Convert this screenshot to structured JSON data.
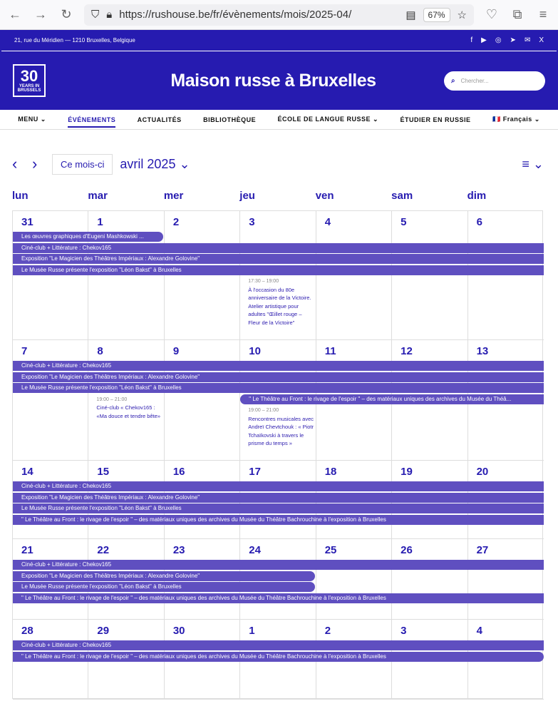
{
  "browser": {
    "url": "https://rushouse.be/fr/évènements/mois/2025-04/",
    "zoom": "67%"
  },
  "topbar": {
    "address": "21, rue du Méridien — 1210 Bruxelles, Belgique",
    "social": [
      "facebook-icon",
      "youtube-icon",
      "instagram-icon",
      "telegram-icon",
      "mail-icon",
      "x-icon"
    ]
  },
  "header": {
    "logo_text": "30",
    "logo_sub": "YEARS IN BRUSSELS",
    "title": "Maison russe à Bruxelles",
    "search_placeholder": "Chercher..."
  },
  "nav": [
    {
      "label": "MENU ⌄"
    },
    {
      "label": "ÉVÉNEMENTS",
      "active": true
    },
    {
      "label": "ACTUALITÉS"
    },
    {
      "label": "BIBLIOTHÈQUE"
    },
    {
      "label": "ÉCOLE DE LANGUE RUSSE ⌄"
    },
    {
      "label": "ÉTUDIER EN RUSSIE"
    },
    {
      "label": "🇫🇷 Français ⌄"
    }
  ],
  "calendar": {
    "today_label": "Ce mois-ci",
    "month_label": "avril 2025 ⌄",
    "view_icon": "≡ ⌄",
    "weekdays": [
      "lun",
      "mar",
      "mer",
      "jeu",
      "ven",
      "sam",
      "dim"
    ],
    "accent": "#5f4fc0",
    "weeks": [
      {
        "days": [
          "31",
          "1",
          "2",
          "3",
          "4",
          "5",
          "6"
        ],
        "bars": [
          {
            "text": "Les œuvres graphiques d'Eugeni Mashkowski ...",
            "start": 0,
            "span": 2,
            "round_end": true
          },
          {
            "text": "Ciné-club + Littérature : Chekov165",
            "start": 0,
            "span": 7
          },
          {
            "text": "Exposition \"Le Magicien des Théâtres Impériaux : Alexandre Golovine\"",
            "start": 0,
            "span": 7
          },
          {
            "text": "Le Musée Russe présente l'exposition \"Léon Bakst\" à Bruxelles",
            "start": 0,
            "span": 7
          }
        ],
        "timed": [
          {
            "col": 3,
            "time": "17:30 – 19:00",
            "title": "À l'occasion du 80e anniversaire de la Victoire. Atelier artistique pour adultes \"Œillet rouge – Fleur de la Victoire\""
          }
        ]
      },
      {
        "days": [
          "7",
          "8",
          "9",
          "10",
          "11",
          "12",
          "13"
        ],
        "bars": [
          {
            "text": "Ciné-club + Littérature : Chekov165",
            "start": 0,
            "span": 7
          },
          {
            "text": "Exposition \"Le Magicien des Théâtres Impériaux : Alexandre Golovine\"",
            "start": 0,
            "span": 7
          },
          {
            "text": "Le Musée Russe présente l'exposition \"Léon Bakst\" à Bruxelles",
            "start": 0,
            "span": 7
          },
          {
            "text": "\" Le Théâtre au Front : le rivage de l'espoir \" – des matériaux uniques des archives du Musée du Théâ...",
            "start": 3,
            "span": 4,
            "round_start": true
          }
        ],
        "timed": [
          {
            "col": 1,
            "row": 3,
            "time": "19:00 – 21:00",
            "title": "Ciné-club « Chekov165 : «Ma douce et tendre bête»"
          },
          {
            "col": 3,
            "row": 4,
            "time": "19:00 – 21:00",
            "title": "Rencontres musicales avec Andreï Chevtchouk : « Piotr Tchaïkovski à travers le prisme du temps »"
          }
        ]
      },
      {
        "days": [
          "14",
          "15",
          "16",
          "17",
          "18",
          "19",
          "20"
        ],
        "bars": [
          {
            "text": "Ciné-club + Littérature : Chekov165",
            "start": 0,
            "span": 7
          },
          {
            "text": "Exposition \"Le Magicien des Théâtres Impériaux : Alexandre Golovine\"",
            "start": 0,
            "span": 7
          },
          {
            "text": "Le Musée Russe présente l'exposition \"Léon Bakst\" à Bruxelles",
            "start": 0,
            "span": 7
          },
          {
            "text": "\" Le Théâtre au Front : le rivage de l'espoir \" – des matériaux uniques des archives du Musée du Théâtre Bachrouchine à l'exposition à Bruxelles",
            "start": 0,
            "span": 7
          }
        ],
        "timed": []
      },
      {
        "days": [
          "21",
          "22",
          "23",
          "24",
          "25",
          "26",
          "27"
        ],
        "bars": [
          {
            "text": "Ciné-club + Littérature : Chekov165",
            "start": 0,
            "span": 7
          },
          {
            "text": "Exposition \"Le Magicien des Théâtres Impériaux : Alexandre Golovine\"",
            "start": 0,
            "span": 4,
            "round_end": true
          },
          {
            "text": "Le Musée Russe présente l'exposition \"Léon Bakst\" à Bruxelles",
            "start": 0,
            "span": 4,
            "round_end": true
          },
          {
            "text": "\" Le Théâtre au Front : le rivage de l'espoir \" – des matériaux uniques des archives du Musée du Théâtre Bachrouchine à l'exposition à Bruxelles",
            "start": 0,
            "span": 7
          }
        ],
        "timed": []
      },
      {
        "days": [
          "28",
          "29",
          "30",
          "1",
          "2",
          "3",
          "4"
        ],
        "bars": [
          {
            "text": "Ciné-club + Littérature : Chekov165",
            "start": 0,
            "span": 7
          },
          {
            "text": "\" Le Théâtre au Front : le rivage de l'espoir \" – des matériaux uniques des archives du Musée du Théâtre Bachrouchine à l'exposition à Bruxelles",
            "start": 0,
            "span": 7,
            "round_end": true
          }
        ],
        "timed": []
      }
    ]
  }
}
